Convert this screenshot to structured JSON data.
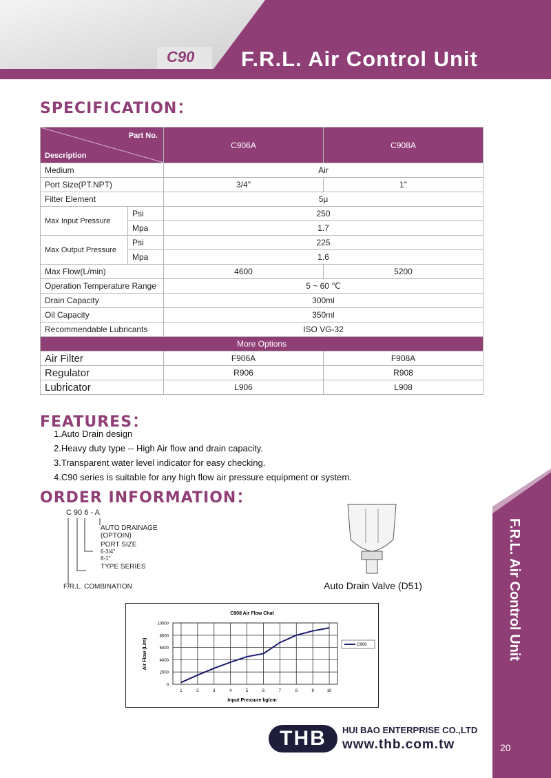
{
  "header": {
    "code": "C90",
    "title": "F.R.L. Air Control Unit"
  },
  "spec": {
    "heading": "SPECIFICATION：",
    "part_no": "Part No.",
    "description": "Description",
    "models": [
      "C906A",
      "C908A"
    ],
    "rows": [
      {
        "label": "Medium",
        "values": [
          "Air"
        ]
      },
      {
        "label": "Port Size(PT.NPT)",
        "values": [
          "3/4\"",
          "1\""
        ]
      },
      {
        "label": "Filter  Element",
        "values": [
          "5μ"
        ]
      },
      {
        "label": "Max Input Pressure",
        "units": [
          "Psi",
          "Mpa"
        ],
        "unit_values": [
          [
            "250"
          ],
          [
            "1.7"
          ]
        ]
      },
      {
        "label": "Max Output Pressure",
        "units": [
          "Psi",
          "Mpa"
        ],
        "unit_values": [
          [
            "225"
          ],
          [
            "1.6"
          ]
        ]
      },
      {
        "label": "Max Flow(L/min)",
        "values": [
          "4600",
          "5200"
        ]
      },
      {
        "label": "Operation Temperature Range",
        "values": [
          "5 ~ 60 ℃"
        ]
      },
      {
        "label": "Drain Capacity",
        "values": [
          "300ml"
        ]
      },
      {
        "label": "Oil Capacity",
        "values": [
          "350ml"
        ]
      },
      {
        "label": "Recommendable Lubricants",
        "values": [
          "ISO  VG-32"
        ]
      }
    ],
    "options_heading": "More Options",
    "options": [
      {
        "label": "Air Filter",
        "values": [
          "F906A",
          "F908A"
        ]
      },
      {
        "label": "Regulator",
        "values": [
          "R906",
          "R908"
        ]
      },
      {
        "label": "Lubricator",
        "values": [
          "L906",
          "L908"
        ]
      }
    ]
  },
  "features": {
    "heading": "FEATURES：",
    "items": [
      "1.Auto Drain design",
      "2.Heavy duty type -- High Air flow and drain capacity.",
      "3.Transparent water level indicator for easy checking.",
      "4.C90 series is suitable for any high flow air pressure equipment or system."
    ]
  },
  "order": {
    "heading": "ORDER INFORMATION：",
    "code": "C  90  6  - A",
    "labels": [
      "AUTO DRAINAGE",
      "(OPTOIN)",
      "PORT SIZE",
      "6-3/4\"",
      "8-1\"",
      "TYPE SERIES",
      "F/R.L. COMBINATION"
    ],
    "valve_caption": "Auto Drain Valve (D51)"
  },
  "chart_data": {
    "type": "line",
    "title": "C908 Air Flow Chat",
    "x_label": "Input Pressure kg/cm",
    "y_label": "Air Flow (L/m)",
    "x": [
      1,
      2,
      3,
      4,
      5,
      6,
      7,
      8,
      9,
      10
    ],
    "series": [
      {
        "name": "C908",
        "color": "#1a1a6e",
        "values": [
          300,
          1500,
          2600,
          3600,
          4500,
          5000,
          6800,
          8000,
          8700,
          9200
        ]
      }
    ],
    "xlim": [
      0.5,
      10.5
    ],
    "xticks": [
      1,
      2,
      3,
      4,
      5,
      6,
      7,
      8,
      9,
      10
    ],
    "ylim": [
      0,
      10000
    ],
    "yticks": [
      0,
      2000,
      4000,
      6000,
      8000,
      10000
    ],
    "grid": true,
    "legend": "right"
  },
  "footer": {
    "logo": "THB",
    "company": "HUI BAO ENTERPRISE CO.,LTD",
    "url": "www.thb.com.tw",
    "side_title": "F.R.L. Air Control Unit",
    "page": "20"
  }
}
